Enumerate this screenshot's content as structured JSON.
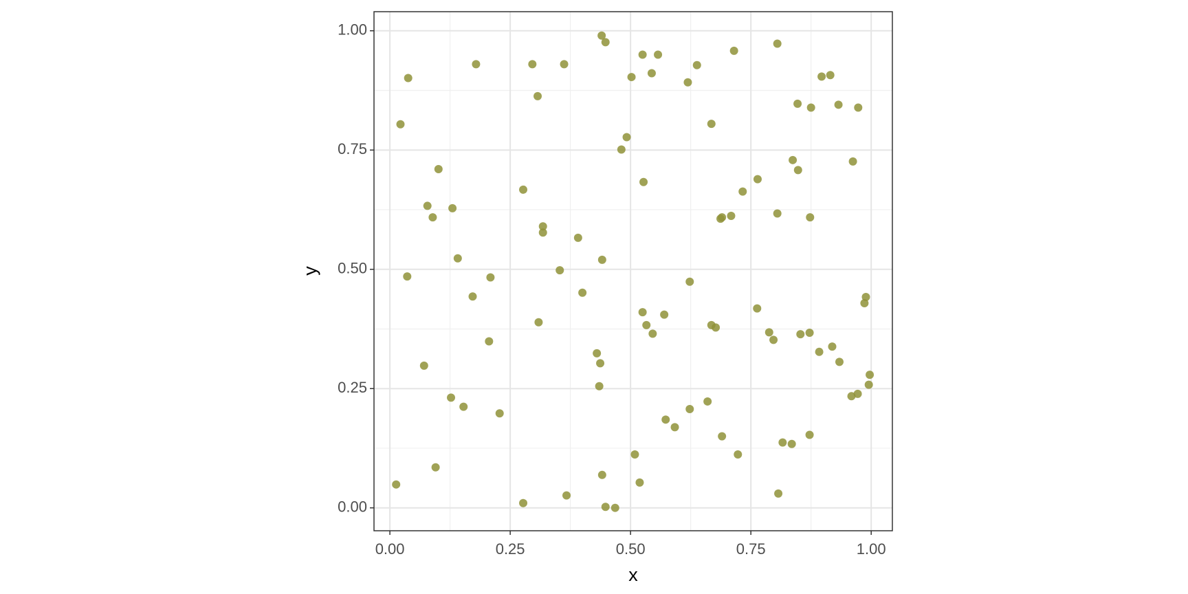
{
  "chart_data": {
    "type": "scatter",
    "x_label": "x",
    "y_label": "y",
    "xlim": [
      -0.033,
      1.044
    ],
    "ylim": [
      -0.048,
      1.04
    ],
    "xticks": [
      {
        "value": 0,
        "label": "0.00"
      },
      {
        "value": 0.25,
        "label": "0.25"
      },
      {
        "value": 0.5,
        "label": "0.50"
      },
      {
        "value": 0.75,
        "label": "0.75"
      },
      {
        "value": 1,
        "label": "1.00"
      }
    ],
    "yticks": [
      {
        "value": 0,
        "label": "0.00"
      },
      {
        "value": 0.25,
        "label": "0.25"
      },
      {
        "value": 0.5,
        "label": "0.50"
      },
      {
        "value": 0.75,
        "label": "0.75"
      },
      {
        "value": 1,
        "label": "1.00"
      }
    ],
    "grid": true,
    "color": "#8f9238",
    "x": [
      0.44,
      0.448,
      0.805,
      0.715,
      0.525,
      0.557,
      0.179,
      0.296,
      0.362,
      0.638,
      0.038,
      0.544,
      0.502,
      0.897,
      0.915,
      0.619,
      0.307,
      0.847,
      0.932,
      0.875,
      0.973,
      0.022,
      0.668,
      0.492,
      0.481,
      0.837,
      0.962,
      0.101,
      0.848,
      0.527,
      0.764,
      0.277,
      0.733,
      0.078,
      0.13,
      0.805,
      0.089,
      0.687,
      0.69,
      0.709,
      0.873,
      0.318,
      0.318,
      0.391,
      0.141,
      0.441,
      0.353,
      0.036,
      0.209,
      0.623,
      0.4,
      0.172,
      0.989,
      0.986,
      0.763,
      0.525,
      0.57,
      0.309,
      0.533,
      0.668,
      0.677,
      0.788,
      0.872,
      0.546,
      0.853,
      0.206,
      0.797,
      0.919,
      0.892,
      0.43,
      0.437,
      0.934,
      0.071,
      0.997,
      0.995,
      0.435,
      0.972,
      0.959,
      0.127,
      0.66,
      0.153,
      0.623,
      0.228,
      0.573,
      0.592,
      0.69,
      0.872,
      0.816,
      0.835,
      0.723,
      0.509,
      0.095,
      0.441,
      0.013,
      0.519,
      0.807,
      0.367,
      0.277,
      0.448,
      0.468
    ],
    "y": [
      0.99,
      0.976,
      0.973,
      0.958,
      0.95,
      0.95,
      0.93,
      0.93,
      0.93,
      0.928,
      0.901,
      0.911,
      0.903,
      0.904,
      0.907,
      0.892,
      0.863,
      0.847,
      0.845,
      0.839,
      0.839,
      0.804,
      0.805,
      0.777,
      0.751,
      0.729,
      0.726,
      0.71,
      0.708,
      0.683,
      0.689,
      0.667,
      0.663,
      0.633,
      0.628,
      0.617,
      0.609,
      0.606,
      0.609,
      0.612,
      0.609,
      0.59,
      0.577,
      0.566,
      0.523,
      0.52,
      0.498,
      0.485,
      0.483,
      0.474,
      0.451,
      0.443,
      0.442,
      0.429,
      0.418,
      0.41,
      0.405,
      0.389,
      0.383,
      0.383,
      0.378,
      0.368,
      0.367,
      0.365,
      0.364,
      0.349,
      0.352,
      0.338,
      0.327,
      0.324,
      0.303,
      0.306,
      0.298,
      0.279,
      0.258,
      0.255,
      0.239,
      0.234,
      0.231,
      0.223,
      0.212,
      0.207,
      0.198,
      0.185,
      0.169,
      0.15,
      0.153,
      0.137,
      0.134,
      0.112,
      0.112,
      0.085,
      0.069,
      0.049,
      0.053,
      0.03,
      0.026,
      0.01,
      0.002,
      0.0
    ]
  }
}
